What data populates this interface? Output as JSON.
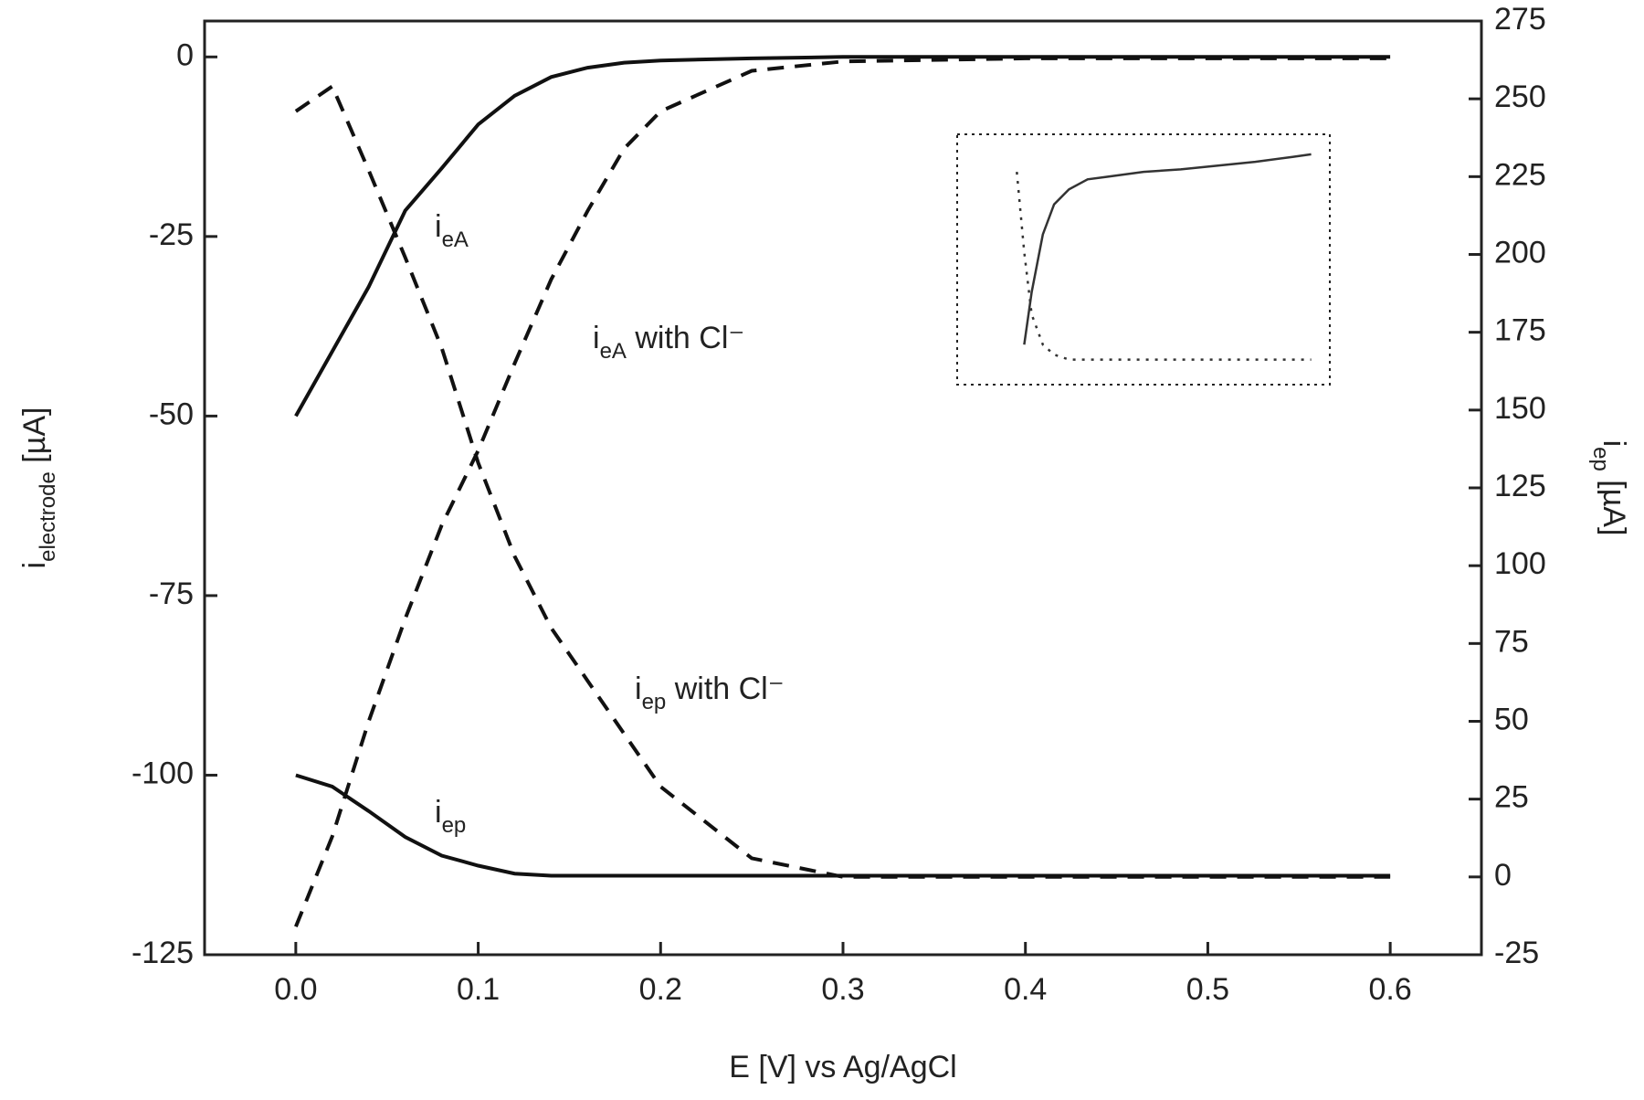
{
  "chart_data": [
    {
      "type": "line",
      "xlabel": "E [V] vs Ag/AgCl",
      "ylabel": {
        "main": "i",
        "sub": "electrode",
        "rest": " [µA]"
      },
      "y2label": {
        "main": "i",
        "sub": "ep",
        "rest": " [µA]"
      },
      "x": [
        0,
        0.02,
        0.04,
        0.06,
        0.08,
        0.1,
        0.12,
        0.14,
        0.16,
        0.18,
        0.2,
        0.25,
        0.3,
        0.4,
        0.5,
        0.6
      ],
      "xlim": [
        -0.05,
        0.65
      ],
      "xticks": [
        {
          "value": 0,
          "label": "0.0"
        },
        0.1,
        0.2,
        0.3,
        0.4,
        0.5,
        0.6
      ],
      "ylim": [
        -125,
        5
      ],
      "yticks": [
        -125,
        -100,
        -75,
        -50,
        -25,
        0
      ],
      "y2lim": [
        -25,
        275
      ],
      "y2ticks": [
        -25,
        0,
        25,
        50,
        75,
        100,
        125,
        150,
        175,
        200,
        225,
        250,
        275
      ],
      "series": [
        {
          "color": "#111111",
          "dash": "solid",
          "values": [
            -50,
            -41,
            -32,
            -21.4,
            -15.5,
            -9.4,
            -5.4,
            -2.8,
            -1.5,
            -0.8,
            -0.5,
            -0.2,
            0,
            0,
            0,
            0
          ]
        },
        {
          "color": "#111111",
          "dash": "solid",
          "values": [
            -100,
            -101.6,
            -105,
            -108.6,
            -111.2,
            -112.6,
            -113.7,
            -114,
            -114,
            -114,
            -114,
            -114,
            -114,
            -114,
            -114,
            -114
          ]
        },
        {
          "color": "#111111",
          "dash": "dashed",
          "axis": "y2",
          "values": [
            -16,
            13,
            50,
            83,
            113,
            137,
            165,
            192,
            214,
            234,
            246,
            259,
            262,
            263,
            263,
            263
          ]
        },
        {
          "color": "#111111",
          "dash": "dashed",
          "axis": "y2",
          "values": [
            246,
            254,
            227,
            199,
            170,
            133,
            103,
            80,
            63,
            46,
            29,
            6,
            0,
            0,
            0,
            0
          ]
        }
      ],
      "annotations": [
        {
          "main": "i",
          "sub": "eA",
          "rest": ""
        },
        {
          "main": "i",
          "sub": "eA",
          "rest": " with Cl⁻"
        },
        {
          "main": "i",
          "sub": "ep",
          "rest": " with Cl⁻"
        },
        {
          "main": "i",
          "sub": "ep",
          "rest": ""
        }
      ]
    },
    {
      "type": "line",
      "x": [
        0.16,
        0.18,
        0.2,
        0.23,
        0.26,
        0.3,
        0.35,
        0.4,
        0.5,
        0.6,
        0.7,
        0.8,
        0.9,
        0.95
      ],
      "xlim": [
        0,
        1
      ],
      "ylim": [
        0,
        1
      ],
      "series": [
        {
          "color": "#333333",
          "dash": "solid",
          "values": [
            null,
            0.16,
            0.37,
            0.6,
            0.72,
            0.78,
            0.82,
            0.83,
            0.85,
            0.86,
            0.875,
            0.89,
            0.91,
            0.92
          ]
        },
        {
          "color": "#333333",
          "dash": "dotted",
          "values": [
            0.85,
            0.53,
            0.28,
            0.16,
            0.12,
            0.1,
            0.1,
            0.1,
            0.1,
            0.1,
            0.1,
            0.1,
            0.1,
            0.1
          ]
        }
      ]
    }
  ]
}
